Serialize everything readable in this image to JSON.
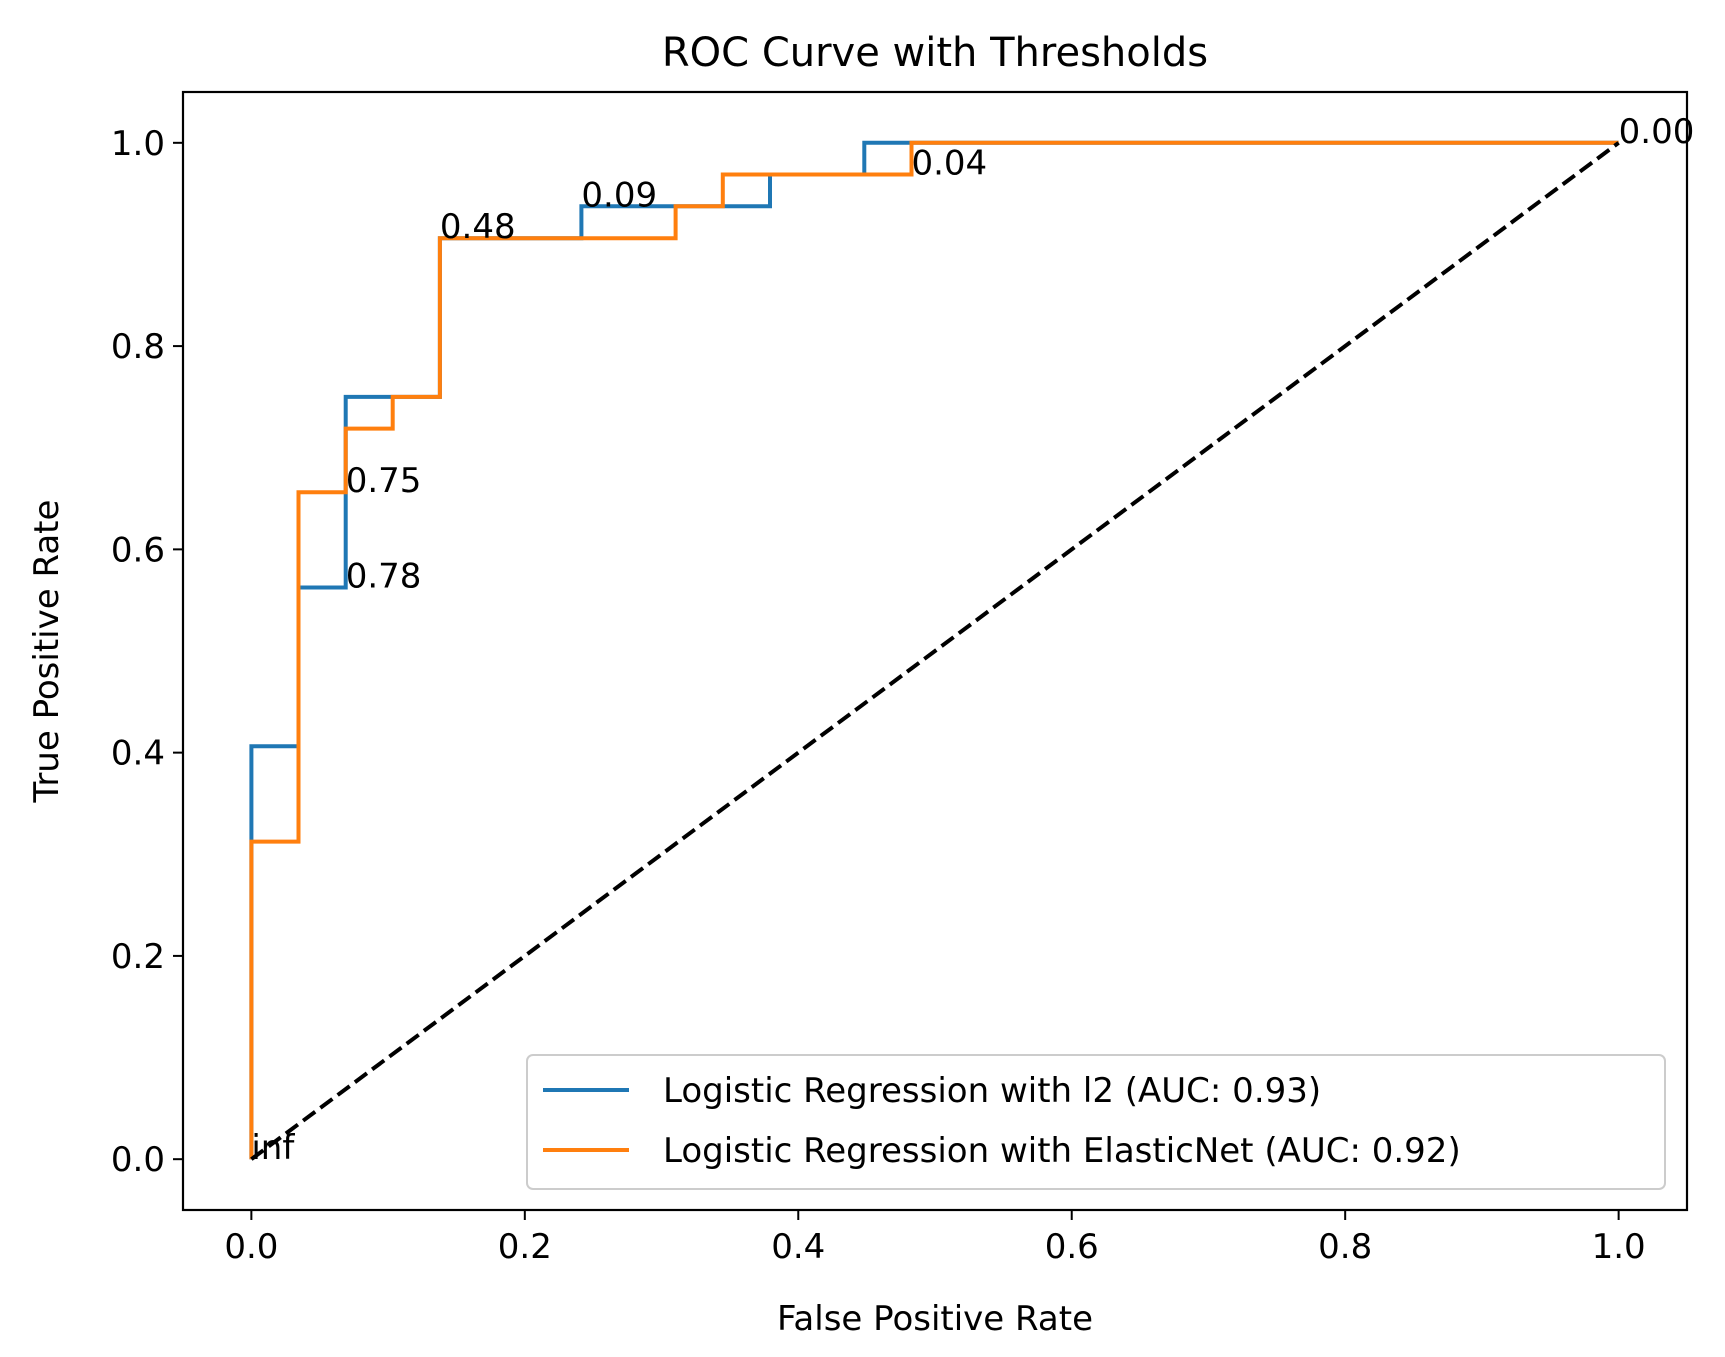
{
  "chart_data": {
    "type": "line",
    "title": "ROC Curve with Thresholds",
    "xlabel": "False Positive Rate",
    "ylabel": "True Positive Rate",
    "xlim": [
      -0.05,
      1.05
    ],
    "ylim": [
      -0.05,
      1.05
    ],
    "xticks": [
      0.0,
      0.2,
      0.4,
      0.6,
      0.8,
      1.0
    ],
    "yticks": [
      0.0,
      0.2,
      0.4,
      0.6,
      0.8,
      1.0
    ],
    "xtick_labels": [
      "0.0",
      "0.2",
      "0.4",
      "0.6",
      "0.8",
      "1.0"
    ],
    "ytick_labels": [
      "0.0",
      "0.2",
      "0.4",
      "0.6",
      "0.8",
      "1.0"
    ],
    "grid": false,
    "legend_position": "lower-right",
    "series": [
      {
        "name": "Logistic Regression with l2 (AUC: 0.93)",
        "color": "#1f77b4",
        "x": [
          0.0,
          0.0,
          0.0,
          0.0,
          0.0345,
          0.0345,
          0.069,
          0.069,
          0.1034,
          0.1034,
          0.1379,
          0.1379,
          0.2414,
          0.2414,
          0.3793,
          0.3793,
          0.4483,
          0.4483,
          1.0
        ],
        "y": [
          0.0,
          0.3125,
          0.3125,
          0.4062,
          0.4062,
          0.5625,
          0.5625,
          0.75,
          0.75,
          0.75,
          0.75,
          0.9062,
          0.9062,
          0.9375,
          0.9375,
          0.9688,
          0.9688,
          1.0,
          1.0
        ]
      },
      {
        "name": "Logistic Regression with ElasticNet (AUC: 0.92)",
        "color": "#ff7f0e",
        "x": [
          0.0,
          0.0,
          0.0345,
          0.0345,
          0.069,
          0.069,
          0.1034,
          0.1034,
          0.1379,
          0.1379,
          0.3103,
          0.3103,
          0.3448,
          0.3448,
          0.4828,
          0.4828,
          1.0
        ],
        "y": [
          0.0,
          0.3125,
          0.3125,
          0.6562,
          0.6562,
          0.7188,
          0.7188,
          0.75,
          0.75,
          0.9062,
          0.9062,
          0.9375,
          0.9375,
          0.9688,
          0.9688,
          1.0,
          1.0
        ]
      }
    ],
    "reference_line": {
      "x": [
        0.0,
        1.0
      ],
      "y": [
        0.0,
        1.0
      ],
      "color": "#000000",
      "style": "dashed"
    },
    "annotations": [
      {
        "text": "inf",
        "x": 0.0,
        "y": 0.0
      },
      {
        "text": "0.78",
        "x": 0.069,
        "y": 0.5625
      },
      {
        "text": "0.75",
        "x": 0.069,
        "y": 0.6562
      },
      {
        "text": "0.48",
        "x": 0.1379,
        "y": 0.9062
      },
      {
        "text": "0.09",
        "x": 0.2414,
        "y": 0.9375
      },
      {
        "text": "0.04",
        "x": 0.4828,
        "y": 0.9688
      },
      {
        "text": "0.00",
        "x": 1.0,
        "y": 1.0
      }
    ]
  }
}
